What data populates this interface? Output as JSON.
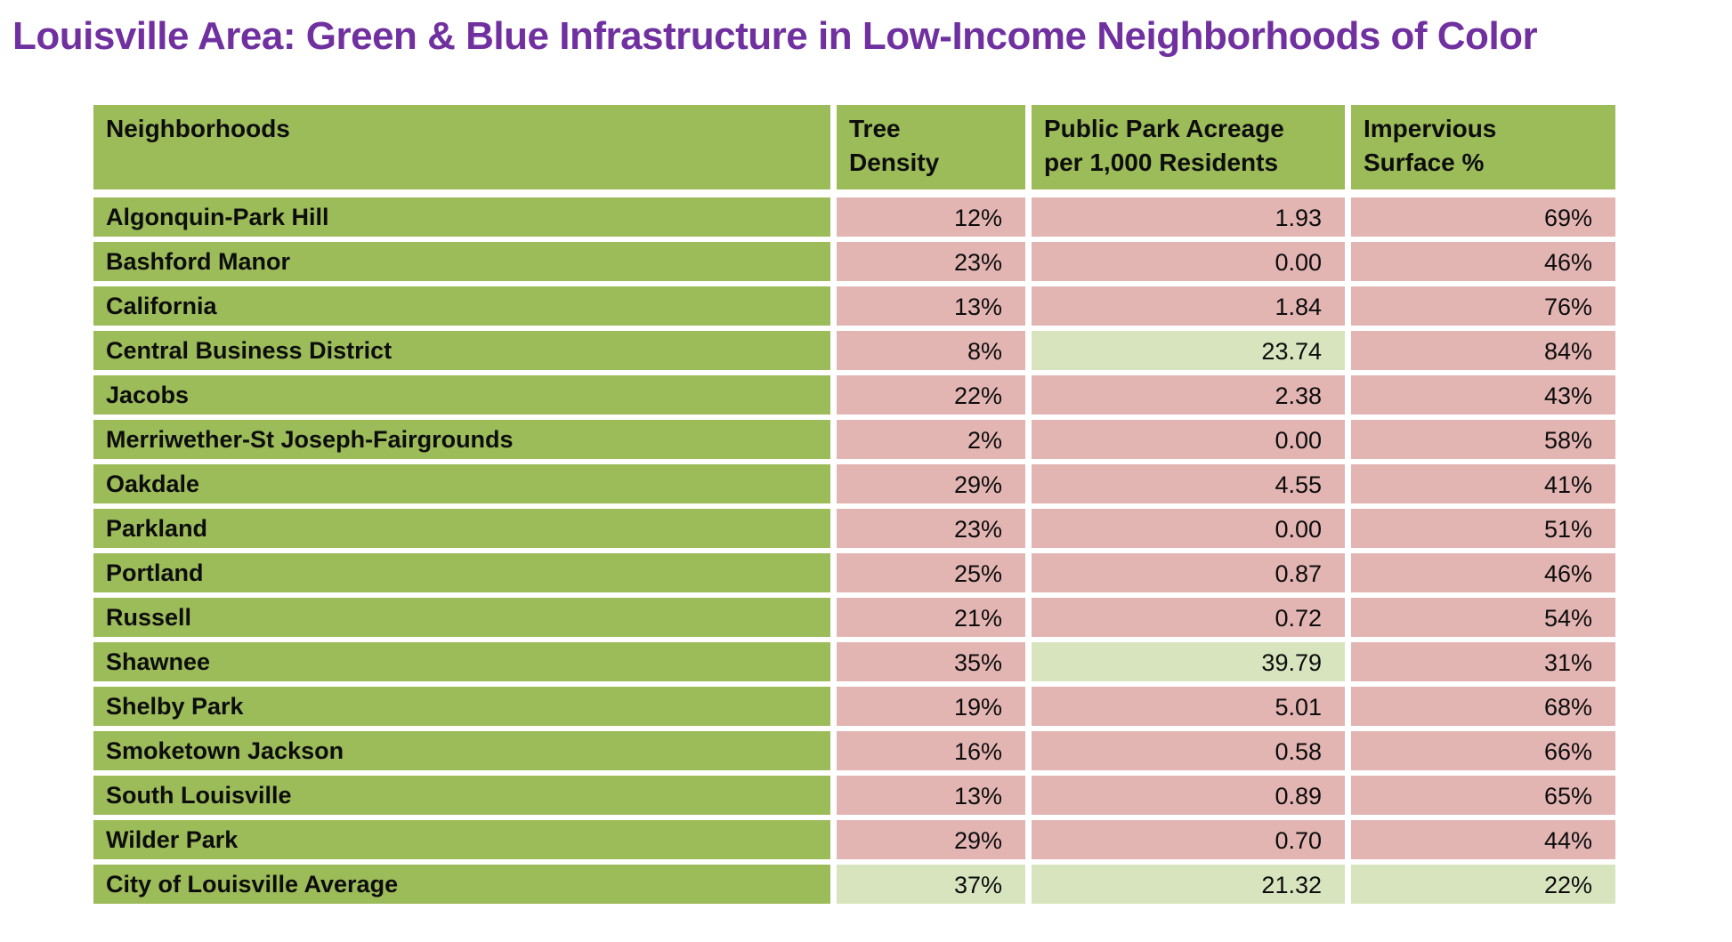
{
  "title": "Louisville Area: Green & Blue Infrastructure in Low-Income Neighborhoods of Color",
  "colors": {
    "title": "#7030A0",
    "header_green": "#9CBB59",
    "pink": "#E2B5B3",
    "light_green": "#D7E4BE",
    "text": "#0d0d0d"
  },
  "table": {
    "columns": [
      "Neighborhoods",
      "Tree\nDensity",
      "Public Park Acreage\nper 1,000 Residents",
      "Impervious\nSurface %"
    ],
    "rows": [
      {
        "name": "Algonquin-Park Hill",
        "tree_density": "12%",
        "park_acreage": "1.93",
        "impervious": "69%",
        "highlights": [
          "pink",
          "pink",
          "pink"
        ]
      },
      {
        "name": "Bashford Manor",
        "tree_density": "23%",
        "park_acreage": "0.00",
        "impervious": "46%",
        "highlights": [
          "pink",
          "pink",
          "pink"
        ]
      },
      {
        "name": "California",
        "tree_density": "13%",
        "park_acreage": "1.84",
        "impervious": "76%",
        "highlights": [
          "pink",
          "pink",
          "pink"
        ]
      },
      {
        "name": "Central Business District",
        "tree_density": "8%",
        "park_acreage": "23.74",
        "impervious": "84%",
        "highlights": [
          "pink",
          "green",
          "pink"
        ]
      },
      {
        "name": "Jacobs",
        "tree_density": "22%",
        "park_acreage": "2.38",
        "impervious": "43%",
        "highlights": [
          "pink",
          "pink",
          "pink"
        ]
      },
      {
        "name": "Merriwether-St Joseph-Fairgrounds",
        "tree_density": "2%",
        "park_acreage": "0.00",
        "impervious": "58%",
        "highlights": [
          "pink",
          "pink",
          "pink"
        ]
      },
      {
        "name": "Oakdale",
        "tree_density": "29%",
        "park_acreage": "4.55",
        "impervious": "41%",
        "highlights": [
          "pink",
          "pink",
          "pink"
        ]
      },
      {
        "name": "Parkland",
        "tree_density": "23%",
        "park_acreage": "0.00",
        "impervious": "51%",
        "highlights": [
          "pink",
          "pink",
          "pink"
        ]
      },
      {
        "name": "Portland",
        "tree_density": "25%",
        "park_acreage": "0.87",
        "impervious": "46%",
        "highlights": [
          "pink",
          "pink",
          "pink"
        ]
      },
      {
        "name": "Russell",
        "tree_density": "21%",
        "park_acreage": "0.72",
        "impervious": "54%",
        "highlights": [
          "pink",
          "pink",
          "pink"
        ]
      },
      {
        "name": "Shawnee",
        "tree_density": "35%",
        "park_acreage": "39.79",
        "impervious": "31%",
        "highlights": [
          "pink",
          "green",
          "pink"
        ]
      },
      {
        "name": "Shelby Park",
        "tree_density": "19%",
        "park_acreage": "5.01",
        "impervious": "68%",
        "highlights": [
          "pink",
          "pink",
          "pink"
        ]
      },
      {
        "name": "Smoketown Jackson",
        "tree_density": "16%",
        "park_acreage": "0.58",
        "impervious": "66%",
        "highlights": [
          "pink",
          "pink",
          "pink"
        ]
      },
      {
        "name": "South Louisville",
        "tree_density": "13%",
        "park_acreage": "0.89",
        "impervious": "65%",
        "highlights": [
          "pink",
          "pink",
          "pink"
        ]
      },
      {
        "name": "Wilder Park",
        "tree_density": "29%",
        "park_acreage": "0.70",
        "impervious": "44%",
        "highlights": [
          "pink",
          "pink",
          "pink"
        ]
      },
      {
        "name": "City of Louisville Average",
        "tree_density": "37%",
        "park_acreage": "21.32",
        "impervious": "22%",
        "highlights": [
          "green",
          "green",
          "green"
        ]
      }
    ]
  },
  "chart_data": {
    "type": "table",
    "title": "Louisville Area: Green & Blue Infrastructure in Low-Income Neighborhoods of Color",
    "categories": [
      "Algonquin-Park Hill",
      "Bashford Manor",
      "California",
      "Central Business District",
      "Jacobs",
      "Merriwether-St Joseph-Fairgrounds",
      "Oakdale",
      "Parkland",
      "Portland",
      "Russell",
      "Shawnee",
      "Shelby Park",
      "Smoketown Jackson",
      "South Louisville",
      "Wilder Park",
      "City of Louisville Average"
    ],
    "series": [
      {
        "name": "Tree Density (%)",
        "values": [
          12,
          23,
          13,
          8,
          22,
          2,
          29,
          23,
          25,
          21,
          35,
          19,
          16,
          13,
          29,
          37
        ]
      },
      {
        "name": "Public Park Acreage per 1,000 Residents",
        "values": [
          1.93,
          0.0,
          1.84,
          23.74,
          2.38,
          0.0,
          4.55,
          0.0,
          0.87,
          0.72,
          39.79,
          5.01,
          0.58,
          0.89,
          0.7,
          21.32
        ]
      },
      {
        "name": "Impervious Surface (%)",
        "values": [
          69,
          46,
          76,
          84,
          43,
          58,
          41,
          51,
          46,
          54,
          31,
          68,
          66,
          65,
          44,
          22
        ]
      }
    ],
    "highlighted_cells_light_green": [
      "Central Business District / Public Park Acreage",
      "Shawnee / Public Park Acreage",
      "City of Louisville Average / Tree Density",
      "City of Louisville Average / Public Park Acreage",
      "City of Louisville Average / Impervious Surface"
    ],
    "legend_position": "none",
    "grid": false
  }
}
